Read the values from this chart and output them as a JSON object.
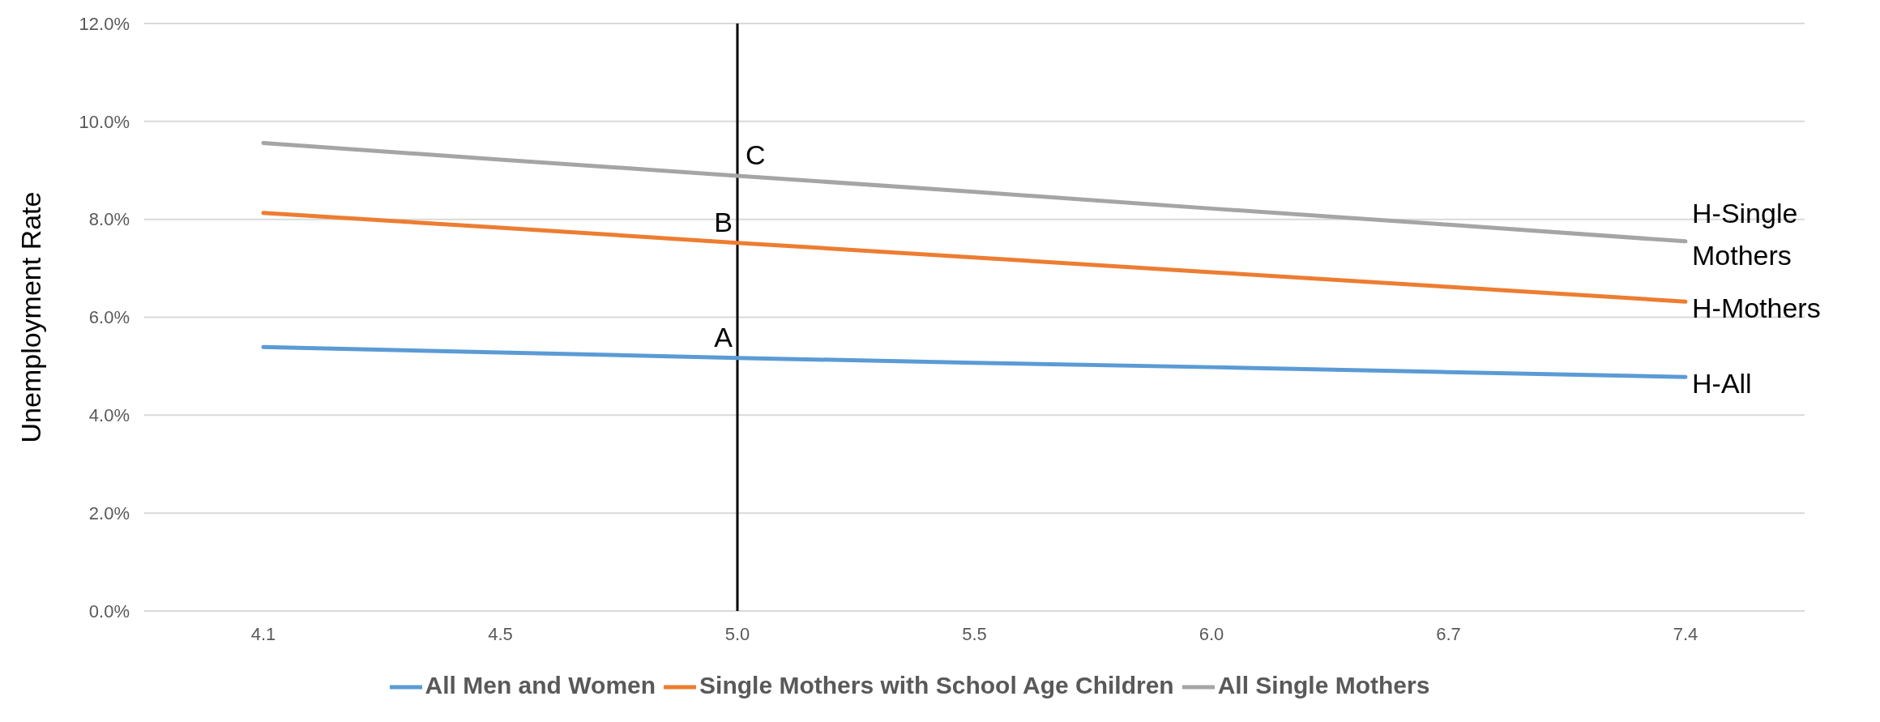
{
  "chart_data": {
    "type": "line",
    "ylabel": "Unemployment Rate",
    "categories": [
      "4.1",
      "4.5",
      "5.0",
      "5.5",
      "6.0",
      "6.7",
      "7.4"
    ],
    "series": [
      {
        "name": "All Men and Women",
        "color": "#5b9bd5",
        "values": [
          5.39,
          5.28,
          5.17,
          5.07,
          4.98,
          4.88,
          4.78
        ]
      },
      {
        "name": "Single Mothers with School Age Children",
        "color": "#ed7d31",
        "values": [
          8.13,
          7.83,
          7.52,
          7.22,
          6.92,
          6.62,
          6.32
        ]
      },
      {
        "name": "All Single Mothers",
        "color": "#a5a5a5",
        "values": [
          9.56,
          9.22,
          8.89,
          8.56,
          8.22,
          7.89,
          7.55
        ]
      }
    ],
    "ylim": [
      0,
      12
    ],
    "yticks": [
      {
        "value": 0,
        "label": "0.0%"
      },
      {
        "value": 2,
        "label": "2.0%"
      },
      {
        "value": 4,
        "label": "4.0%"
      },
      {
        "value": 6,
        "label": "6.0%"
      },
      {
        "value": 8,
        "label": "8.0%"
      },
      {
        "value": 10,
        "label": "10.0%"
      },
      {
        "value": 12,
        "label": "12.0%"
      }
    ],
    "ref_lines": [
      {
        "axis": "x",
        "value": "5.0",
        "color": "#000000"
      }
    ],
    "annotations": [
      {
        "text": "A",
        "x": "5.0",
        "y": 5.17
      },
      {
        "text": "B",
        "x": "5.0",
        "y": 7.52
      },
      {
        "text": "C",
        "x": "5.0",
        "y": 8.89
      },
      {
        "text": "H-All",
        "x": "7.4",
        "y": 4.78
      },
      {
        "text": "H-Mothers",
        "x": "7.4",
        "y": 6.32
      },
      {
        "text": "H-Single Mothers",
        "x": "7.4",
        "y": 7.55
      }
    ],
    "grid": "y",
    "legend": "bottom",
    "marker": "none",
    "line_style": "solid"
  }
}
